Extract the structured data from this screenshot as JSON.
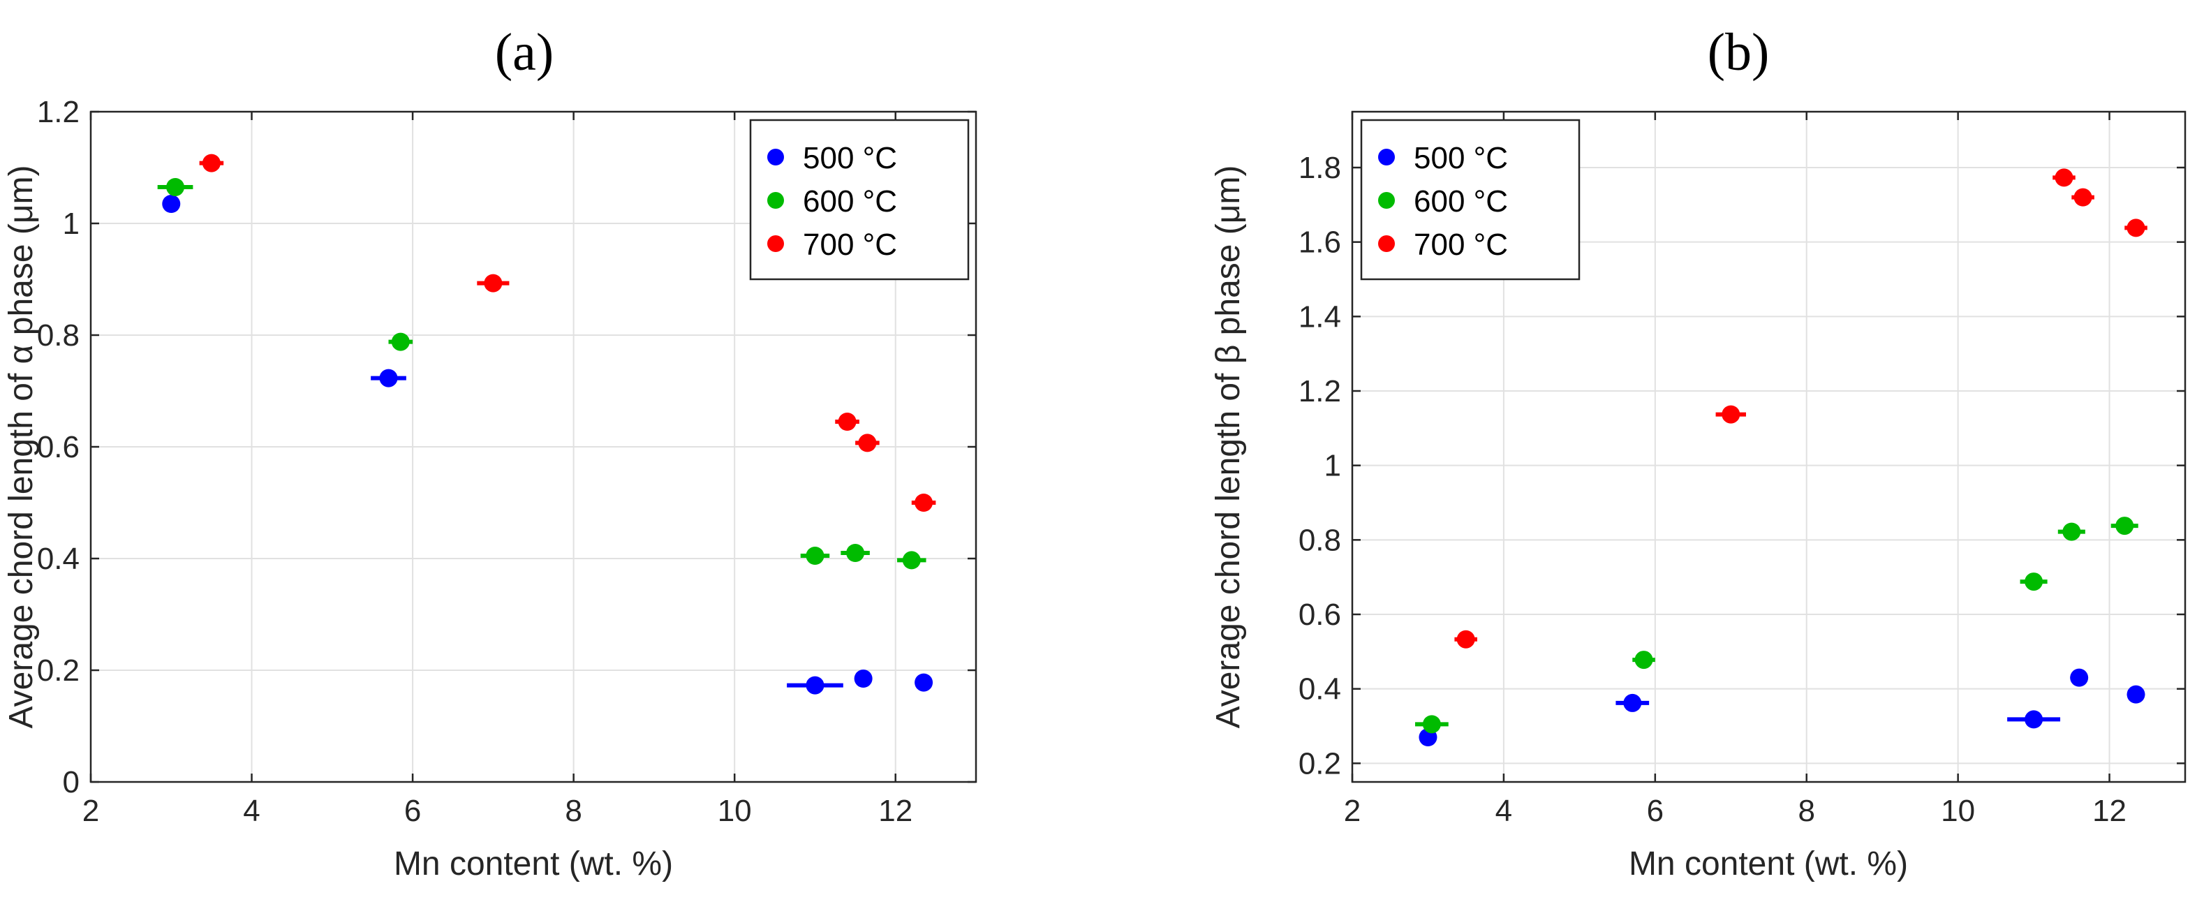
{
  "chart_data": [
    {
      "type": "scatter",
      "panel_title": "(a)",
      "xlabel": "Mn content (wt. %)",
      "ylabel": "Average chord length of α phase  (μm)",
      "xlim": [
        2,
        13
      ],
      "ylim": [
        0,
        1.2
      ],
      "grid": true,
      "legend_position": "top-right",
      "x_ticks": [
        2,
        4,
        6,
        8,
        10,
        12
      ],
      "x_tick_labels": [
        "2",
        "4",
        "6",
        "8",
        "10",
        "12"
      ],
      "y_ticks": [
        0,
        0.2,
        0.4,
        0.6,
        0.8,
        1,
        1.2
      ],
      "y_tick_labels": [
        "0",
        "0.2",
        "0.4",
        "0.6",
        "0.8",
        "1",
        "1.2"
      ],
      "series": [
        {
          "name": "500 °C",
          "color": "#0000ff",
          "points": [
            {
              "x": 3.0,
              "y": 1.035,
              "xerr": 0.0
            },
            {
              "x": 5.7,
              "y": 0.723,
              "xerr": 0.22
            },
            {
              "x": 11.0,
              "y": 0.173,
              "xerr": 0.35
            },
            {
              "x": 11.6,
              "y": 0.185,
              "xerr": 0.05
            },
            {
              "x": 12.35,
              "y": 0.178,
              "xerr": 0.05
            }
          ]
        },
        {
          "name": "600 °C",
          "color": "#00bb00",
          "points": [
            {
              "x": 3.05,
              "y": 1.065,
              "xerr": 0.22
            },
            {
              "x": 5.85,
              "y": 0.788,
              "xerr": 0.15
            },
            {
              "x": 11.0,
              "y": 0.405,
              "xerr": 0.18
            },
            {
              "x": 11.5,
              "y": 0.41,
              "xerr": 0.18
            },
            {
              "x": 12.2,
              "y": 0.397,
              "xerr": 0.18
            }
          ]
        },
        {
          "name": "700 °C",
          "color": "#ff0000",
          "points": [
            {
              "x": 3.5,
              "y": 1.108,
              "xerr": 0.15
            },
            {
              "x": 7.0,
              "y": 0.893,
              "xerr": 0.2
            },
            {
              "x": 11.4,
              "y": 0.645,
              "xerr": 0.15
            },
            {
              "x": 11.65,
              "y": 0.607,
              "xerr": 0.15
            },
            {
              "x": 12.35,
              "y": 0.5,
              "xerr": 0.15
            }
          ]
        }
      ]
    },
    {
      "type": "scatter",
      "panel_title": "(b)",
      "xlabel": "Mn content (wt. %)",
      "ylabel": "Average chord length of β phase  (μm)",
      "xlim": [
        2,
        13
      ],
      "ylim": [
        0.15,
        1.95
      ],
      "grid": true,
      "legend_position": "top-left",
      "x_ticks": [
        2,
        4,
        6,
        8,
        10,
        12
      ],
      "x_tick_labels": [
        "2",
        "4",
        "6",
        "8",
        "10",
        "12"
      ],
      "y_ticks": [
        0.2,
        0.4,
        0.6,
        0.8,
        1,
        1.2,
        1.4,
        1.6,
        1.8
      ],
      "y_tick_labels": [
        "0.2",
        "0.4",
        "0.6",
        "0.8",
        "1",
        "1.2",
        "1.4",
        "1.6",
        "1.8"
      ],
      "series": [
        {
          "name": "500 °C",
          "color": "#0000ff",
          "points": [
            {
              "x": 3.0,
              "y": 0.27,
              "xerr": 0.0
            },
            {
              "x": 5.7,
              "y": 0.362,
              "xerr": 0.22
            },
            {
              "x": 11.0,
              "y": 0.318,
              "xerr": 0.35
            },
            {
              "x": 11.6,
              "y": 0.43,
              "xerr": 0.05
            },
            {
              "x": 12.35,
              "y": 0.385,
              "xerr": 0.05
            }
          ]
        },
        {
          "name": "600 °C",
          "color": "#00bb00",
          "points": [
            {
              "x": 3.05,
              "y": 0.305,
              "xerr": 0.22
            },
            {
              "x": 5.85,
              "y": 0.478,
              "xerr": 0.15
            },
            {
              "x": 11.0,
              "y": 0.688,
              "xerr": 0.18
            },
            {
              "x": 11.5,
              "y": 0.822,
              "xerr": 0.18
            },
            {
              "x": 12.2,
              "y": 0.838,
              "xerr": 0.18
            }
          ]
        },
        {
          "name": "700 °C",
          "color": "#ff0000",
          "points": [
            {
              "x": 3.5,
              "y": 0.533,
              "xerr": 0.15
            },
            {
              "x": 7.0,
              "y": 1.137,
              "xerr": 0.2
            },
            {
              "x": 11.4,
              "y": 1.773,
              "xerr": 0.15
            },
            {
              "x": 11.65,
              "y": 1.72,
              "xerr": 0.15
            },
            {
              "x": 12.35,
              "y": 1.638,
              "xerr": 0.15
            }
          ]
        }
      ]
    }
  ]
}
